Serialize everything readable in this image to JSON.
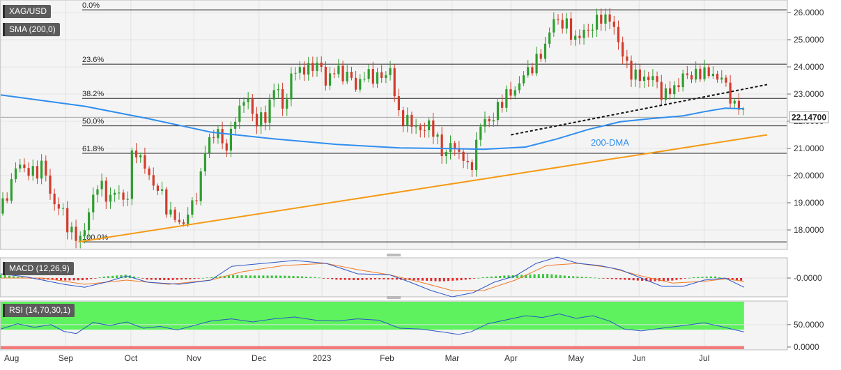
{
  "indicators": {
    "symbol": "XAG/USD",
    "sma": "SMA (200,0)",
    "macd": "MACD (12,26,9)",
    "rsi": "RSI (14,70,30,1)"
  },
  "price_label": "22.14700",
  "annotation_200dma": "200-DMA",
  "colors": {
    "up": "#2e9e2e",
    "down": "#d23b2b",
    "sma": "#2f8ef0",
    "trend": "#f59a14",
    "macd_line": "#2b55c8",
    "signal_line": "#f07a2a",
    "hist_up": "#3ac43a",
    "hist_down": "#e02a2a",
    "rsi_line": "#2b55c8",
    "rsi_over": "#5ef25e",
    "rsi_under": "#f27a7a"
  },
  "chart_data": [
    {
      "type": "candlestick",
      "x_labels": [
        "Aug",
        "Sep",
        "Oct",
        "Nov",
        "Dec",
        "2023",
        "Feb",
        "Mar",
        "Apr",
        "May",
        "Jun",
        "Jul"
      ],
      "y_ticks": [
        "26.0000",
        "25.0000",
        "24.0000",
        "23.0000",
        "22.0000",
        "21.0000",
        "20.0000",
        "19.0000",
        "18.0000"
      ],
      "ylim": [
        17.3,
        26.3
      ],
      "close_path": [
        [
          0,
          18.6
        ],
        [
          4,
          19.6
        ],
        [
          9,
          20.5
        ],
        [
          14,
          20.0
        ],
        [
          20,
          20.4
        ],
        [
          25,
          19.0
        ],
        [
          30,
          18.6
        ],
        [
          35,
          17.6
        ],
        [
          40,
          18.0
        ],
        [
          46,
          19.8
        ],
        [
          50,
          19.2
        ],
        [
          55,
          19.4
        ],
        [
          60,
          19.0
        ],
        [
          62,
          20.5
        ],
        [
          65,
          21.0
        ],
        [
          70,
          20.0
        ],
        [
          75,
          19.5
        ],
        [
          80,
          18.7
        ],
        [
          85,
          18.2
        ],
        [
          90,
          18.6
        ],
        [
          95,
          19.8
        ],
        [
          98,
          21.2
        ],
        [
          103,
          21.7
        ],
        [
          106,
          21.0
        ],
        [
          110,
          21.5
        ],
        [
          112,
          22.2
        ],
        [
          116,
          22.9
        ],
        [
          122,
          22.0
        ],
        [
          126,
          22.1
        ],
        [
          130,
          23.3
        ],
        [
          135,
          22.5
        ],
        [
          140,
          24.0
        ],
        [
          145,
          23.8
        ],
        [
          150,
          24.2
        ],
        [
          155,
          23.5
        ],
        [
          160,
          23.9
        ],
        [
          166,
          23.6
        ],
        [
          170,
          23.3
        ],
        [
          175,
          23.8
        ],
        [
          180,
          23.5
        ],
        [
          185,
          24.0
        ],
        [
          189,
          22.4
        ],
        [
          193,
          21.9
        ],
        [
          197,
          22.0
        ],
        [
          200,
          21.5
        ],
        [
          204,
          22.0
        ],
        [
          208,
          21.2
        ],
        [
          212,
          20.8
        ],
        [
          215,
          21.2
        ],
        [
          220,
          20.7
        ],
        [
          223,
          20.1
        ],
        [
          226,
          21.0
        ],
        [
          230,
          22.2
        ],
        [
          234,
          21.9
        ],
        [
          238,
          22.8
        ],
        [
          243,
          23.0
        ],
        [
          247,
          23.4
        ],
        [
          252,
          24.0
        ],
        [
          256,
          24.2
        ],
        [
          260,
          25.0
        ],
        [
          264,
          25.8
        ],
        [
          268,
          25.6
        ],
        [
          272,
          25.2
        ],
        [
          275,
          25.0
        ],
        [
          279,
          25.4
        ],
        [
          283,
          25.5
        ],
        [
          286,
          25.9
        ],
        [
          290,
          25.7
        ],
        [
          294,
          25.1
        ],
        [
          297,
          24.1
        ],
        [
          301,
          23.8
        ],
        [
          305,
          23.5
        ],
        [
          309,
          23.7
        ],
        [
          313,
          23.3
        ],
        [
          316,
          22.9
        ],
        [
          320,
          23.2
        ],
        [
          324,
          23.5
        ],
        [
          328,
          23.8
        ],
        [
          332,
          23.6
        ],
        [
          336,
          24.0
        ],
        [
          339,
          23.5
        ],
        [
          343,
          23.8
        ],
        [
          346,
          23.0
        ],
        [
          349,
          22.7
        ],
        [
          352,
          22.5
        ],
        [
          354,
          22.15
        ]
      ],
      "sma200_path": [
        [
          0,
          22.97
        ],
        [
          40,
          22.55
        ],
        [
          70,
          22.1
        ],
        [
          100,
          21.6
        ],
        [
          130,
          21.35
        ],
        [
          160,
          21.15
        ],
        [
          190,
          21.02
        ],
        [
          210,
          21.0
        ],
        [
          230,
          20.97
        ],
        [
          250,
          21.05
        ],
        [
          265,
          21.35
        ],
        [
          280,
          21.7
        ],
        [
          295,
          21.98
        ],
        [
          310,
          22.1
        ],
        [
          325,
          22.2
        ],
        [
          335,
          22.35
        ],
        [
          345,
          22.48
        ],
        [
          354,
          22.46
        ]
      ],
      "fibonacci": [
        {
          "label": "0.0%",
          "value": 26.1
        },
        {
          "label": "23.6%",
          "value": 24.1
        },
        {
          "label": "38.2%",
          "value": 22.84
        },
        {
          "label": "50.0%",
          "value": 21.83
        },
        {
          "label": "61.8%",
          "value": 20.82
        },
        {
          "label": "100.0%",
          "value": 17.56
        }
      ],
      "reference_line": 22.147,
      "rising_trendline": [
        [
          37,
          17.56
        ],
        [
          365,
          21.5
        ]
      ],
      "resistance_trendline": [
        [
          243,
          21.5
        ],
        [
          365,
          23.35
        ]
      ]
    },
    {
      "type": "macd",
      "y_ticks": [
        "-0.0000"
      ],
      "macd_path": [
        [
          0,
          0.1
        ],
        [
          12,
          0.03
        ],
        [
          20,
          -0.05
        ],
        [
          30,
          -0.15
        ],
        [
          40,
          -0.22
        ],
        [
          50,
          -0.1
        ],
        [
          60,
          0.05
        ],
        [
          70,
          -0.1
        ],
        [
          85,
          -0.15
        ],
        [
          100,
          -0.05
        ],
        [
          110,
          0.28
        ],
        [
          125,
          0.35
        ],
        [
          140,
          0.42
        ],
        [
          155,
          0.35
        ],
        [
          170,
          0.1
        ],
        [
          185,
          0.08
        ],
        [
          195,
          -0.1
        ],
        [
          205,
          -0.3
        ],
        [
          215,
          -0.45
        ],
        [
          225,
          -0.35
        ],
        [
          235,
          -0.1
        ],
        [
          245,
          0.05
        ],
        [
          255,
          0.35
        ],
        [
          265,
          0.5
        ],
        [
          275,
          0.35
        ],
        [
          285,
          0.3
        ],
        [
          295,
          0.2
        ],
        [
          305,
          0.0
        ],
        [
          315,
          -0.2
        ],
        [
          325,
          -0.2
        ],
        [
          335,
          -0.05
        ],
        [
          345,
          0.0
        ],
        [
          354,
          -0.22
        ]
      ],
      "signal_path": [
        [
          0,
          0.0
        ],
        [
          20,
          0.0
        ],
        [
          40,
          -0.15
        ],
        [
          60,
          -0.05
        ],
        [
          80,
          -0.15
        ],
        [
          100,
          -0.05
        ],
        [
          115,
          0.15
        ],
        [
          135,
          0.3
        ],
        [
          155,
          0.35
        ],
        [
          170,
          0.2
        ],
        [
          185,
          0.08
        ],
        [
          200,
          -0.1
        ],
        [
          215,
          -0.3
        ],
        [
          230,
          -0.3
        ],
        [
          245,
          -0.05
        ],
        [
          260,
          0.3
        ],
        [
          275,
          0.35
        ],
        [
          290,
          0.25
        ],
        [
          305,
          0.05
        ],
        [
          320,
          -0.12
        ],
        [
          335,
          -0.08
        ],
        [
          345,
          -0.02
        ],
        [
          354,
          -0.08
        ]
      ],
      "histogram": [
        [
          0,
          0.08
        ],
        [
          10,
          0.02
        ],
        [
          20,
          -0.03
        ],
        [
          30,
          -0.06
        ],
        [
          40,
          -0.05
        ],
        [
          50,
          0.04
        ],
        [
          60,
          0.08
        ],
        [
          70,
          -0.04
        ],
        [
          80,
          -0.05
        ],
        [
          90,
          -0.03
        ],
        [
          100,
          0.02
        ],
        [
          110,
          0.07
        ],
        [
          120,
          0.06
        ],
        [
          130,
          0.06
        ],
        [
          140,
          0.05
        ],
        [
          150,
          0.02
        ],
        [
          160,
          -0.04
        ],
        [
          170,
          -0.05
        ],
        [
          180,
          -0.03
        ],
        [
          190,
          -0.04
        ],
        [
          200,
          -0.06
        ],
        [
          210,
          -0.08
        ],
        [
          220,
          -0.05
        ],
        [
          230,
          0.02
        ],
        [
          240,
          0.06
        ],
        [
          250,
          0.08
        ],
        [
          260,
          0.1
        ],
        [
          270,
          0.05
        ],
        [
          280,
          0.02
        ],
        [
          290,
          -0.02
        ],
        [
          300,
          -0.05
        ],
        [
          310,
          -0.08
        ],
        [
          320,
          -0.06
        ],
        [
          330,
          0.02
        ],
        [
          340,
          0.04
        ],
        [
          350,
          -0.05
        ],
        [
          354,
          -0.07
        ]
      ]
    },
    {
      "type": "rsi",
      "y_ticks": [
        "50.0000",
        "0.0000"
      ],
      "rsi_path": [
        [
          0,
          40
        ],
        [
          8,
          52
        ],
        [
          16,
          44
        ],
        [
          24,
          50
        ],
        [
          30,
          35
        ],
        [
          36,
          30
        ],
        [
          44,
          55
        ],
        [
          52,
          48
        ],
        [
          60,
          56
        ],
        [
          68,
          42
        ],
        [
          76,
          46
        ],
        [
          84,
          38
        ],
        [
          92,
          48
        ],
        [
          100,
          58
        ],
        [
          110,
          63
        ],
        [
          120,
          56
        ],
        [
          130,
          63
        ],
        [
          140,
          67
        ],
        [
          150,
          60
        ],
        [
          160,
          58
        ],
        [
          170,
          63
        ],
        [
          180,
          60
        ],
        [
          190,
          42
        ],
        [
          200,
          40
        ],
        [
          210,
          34
        ],
        [
          218,
          28
        ],
        [
          224,
          34
        ],
        [
          232,
          52
        ],
        [
          240,
          60
        ],
        [
          250,
          70
        ],
        [
          258,
          66
        ],
        [
          266,
          74
        ],
        [
          274,
          64
        ],
        [
          282,
          70
        ],
        [
          290,
          58
        ],
        [
          297,
          40
        ],
        [
          305,
          36
        ],
        [
          315,
          42
        ],
        [
          325,
          48
        ],
        [
          335,
          54
        ],
        [
          343,
          46
        ],
        [
          350,
          38
        ],
        [
          354,
          34
        ]
      ]
    }
  ]
}
